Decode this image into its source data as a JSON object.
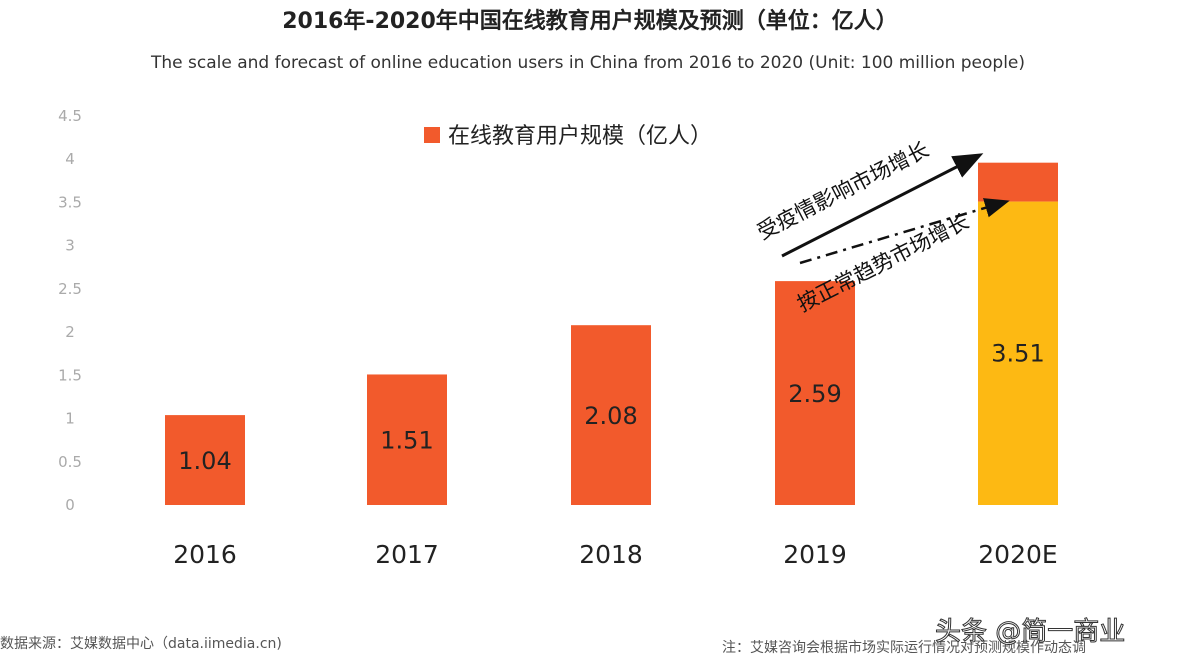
{
  "chart_data": {
    "type": "bar",
    "title": "2016年-2020年中国在线教育用户规模及预测（单位：亿人）",
    "subtitle": "The scale and forecast of online education users in China from 2016 to 2020 (Unit: 100 million people)",
    "categories": [
      "2016",
      "2017",
      "2018",
      "2019",
      "2020E"
    ],
    "series": [
      {
        "name": "在线教育用户规模（亿人）",
        "values": [
          1.04,
          1.51,
          2.08,
          2.59,
          3.51
        ],
        "labels": [
          "1.04",
          "1.51",
          "2.08",
          "2.59",
          "3.51"
        ],
        "color": "#f25a2c"
      }
    ],
    "stacked_extra": {
      "category": "2020E",
      "base": 3.51,
      "top": 3.96,
      "base_color": "#fdb913",
      "top_color": "#f25a2c"
    },
    "yticks": [
      "0",
      "0.5",
      "1",
      "1.5",
      "2",
      "2.5",
      "3",
      "3.5",
      "4",
      "4.5"
    ],
    "ylim": [
      0,
      4.5
    ],
    "grid": false,
    "legend_position": "top-center",
    "annotations": [
      "受疫情影响市场增长",
      "按正常趋势市场增长"
    ],
    "xlabel": "",
    "ylabel": ""
  },
  "footer": {
    "source": "数据来源：艾媒数据中心（data.iimedia.cn)",
    "note": "注：艾媒咨询会根据市场实际运行情况对预测规模作动态调",
    "watermark": "头条 @简一商业"
  }
}
